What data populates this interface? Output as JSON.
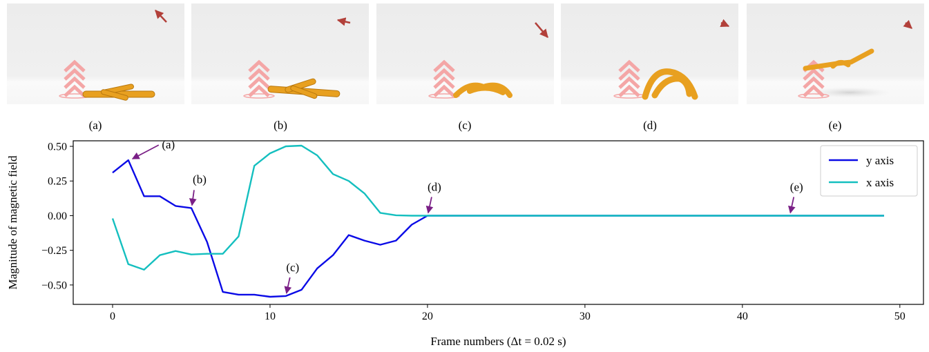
{
  "panels": [
    {
      "label": "(a)"
    },
    {
      "label": "(b)"
    },
    {
      "label": "(c)"
    },
    {
      "label": "(d)"
    },
    {
      "label": "(e)"
    }
  ],
  "colors": {
    "y_series": "#0a0ae6",
    "x_series": "#14bfbf",
    "annotation": "#7a1f86",
    "field_arrow": "#b2403a",
    "robot": "#e8a020",
    "chevron": "#f4a6a6"
  },
  "chart_data": {
    "type": "line",
    "xlabel": "Frame numbers (Δt = 0.02 s)",
    "ylabel": "Magnitude of magnetic field",
    "xlim": [
      -2.5,
      51.5
    ],
    "ylim": [
      -0.64,
      0.54
    ],
    "xticks": [
      0,
      10,
      20,
      30,
      40,
      50
    ],
    "yticks": [
      -0.5,
      -0.25,
      0.0,
      0.25,
      0.5
    ],
    "ytick_labels": [
      "−0.50",
      "−0.25",
      "0.00",
      "0.25",
      "0.50"
    ],
    "grid": false,
    "legend": "top-right",
    "series": [
      {
        "name": "y axis",
        "color": "#0a0ae6",
        "x": [
          0,
          1,
          2,
          3,
          4,
          5,
          6,
          7,
          8,
          9,
          10,
          11,
          12,
          13,
          14,
          15,
          16,
          17,
          18,
          19,
          20,
          49
        ],
        "y": [
          0.31,
          0.4,
          0.14,
          0.14,
          0.07,
          0.055,
          -0.19,
          -0.55,
          -0.57,
          -0.57,
          -0.585,
          -0.58,
          -0.535,
          -0.38,
          -0.285,
          -0.14,
          -0.18,
          -0.21,
          -0.18,
          -0.065,
          0.0,
          0.0
        ]
      },
      {
        "name": "x axis",
        "color": "#14bfbf",
        "x": [
          0,
          1,
          2,
          3,
          4,
          5,
          6,
          7,
          8,
          9,
          10,
          11,
          12,
          13,
          14,
          15,
          16,
          17,
          18,
          19,
          20,
          49
        ],
        "y": [
          -0.02,
          -0.35,
          -0.39,
          -0.285,
          -0.255,
          -0.28,
          -0.275,
          -0.275,
          -0.15,
          0.36,
          0.45,
          0.5,
          0.505,
          0.435,
          0.3,
          0.25,
          0.16,
          0.02,
          0.003,
          0.0,
          0.0,
          0.0
        ]
      }
    ],
    "annotations": [
      {
        "text": "(a)",
        "x": 1,
        "y": 0.4
      },
      {
        "text": "(b)",
        "x": 5,
        "y": 0.055
      },
      {
        "text": "(c)",
        "x": 11,
        "y": -0.58
      },
      {
        "text": "(d)",
        "x": 20,
        "y": 0.0
      },
      {
        "text": "(e)",
        "x": 43,
        "y": 0.0
      }
    ]
  }
}
